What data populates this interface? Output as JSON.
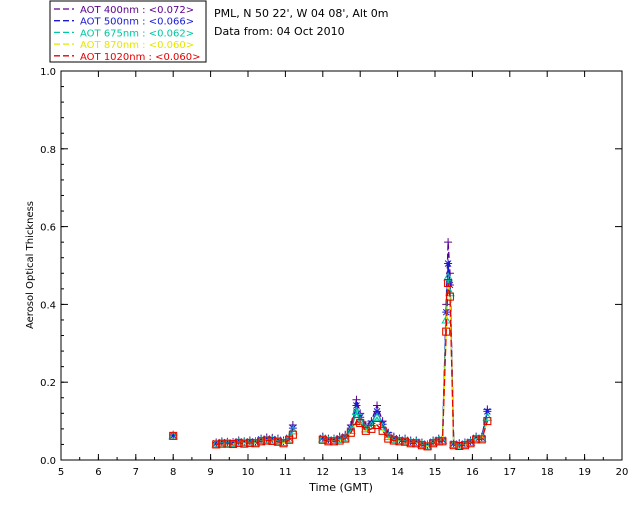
{
  "header": {
    "location": "PML, N 50 22', W 04 08', Alt 0m",
    "date": "Data from: 04 Oct 2010"
  },
  "legend": {
    "items": [
      {
        "label": "AOT  400nm : <0.072>",
        "color": "#5a0090",
        "marker": "plus"
      },
      {
        "label": "AOT  500nm : <0.066>",
        "color": "#1a1ad2",
        "marker": "asterisk"
      },
      {
        "label": "AOT  675nm : <0.062>",
        "color": "#00c8a0",
        "marker": "triangle"
      },
      {
        "label": "AOT  870nm : <0.060>",
        "color": "#e6e600",
        "marker": "square"
      },
      {
        "label": "AOT 1020nm : <0.060>",
        "color": "#e60000",
        "marker": "square"
      }
    ]
  },
  "chart_data": {
    "type": "line",
    "title": "",
    "xlabel": "Time (GMT)",
    "ylabel": "Aerosol Optical Thickness",
    "xlim": [
      5,
      20
    ],
    "ylim": [
      0,
      1.0
    ],
    "xticks": [
      "5",
      "6",
      "7",
      "8",
      "9",
      "10",
      "11",
      "12",
      "13",
      "14",
      "15",
      "16",
      "17",
      "18",
      "19",
      "20"
    ],
    "yticks": [
      "0.0",
      "0.2",
      "0.4",
      "0.6",
      "0.8",
      "1.0"
    ],
    "x": [
      8.0,
      9.15,
      9.3,
      9.45,
      9.6,
      9.75,
      9.9,
      10.05,
      10.2,
      10.35,
      10.5,
      10.65,
      10.8,
      10.95,
      11.1,
      11.2,
      12.0,
      12.15,
      12.3,
      12.45,
      12.6,
      12.75,
      12.9,
      13.0,
      13.15,
      13.3,
      13.45,
      13.6,
      13.75,
      13.9,
      14.05,
      14.2,
      14.35,
      14.5,
      14.65,
      14.8,
      14.95,
      15.1,
      15.2,
      15.3,
      15.35,
      15.4,
      15.5,
      15.65,
      15.8,
      15.95,
      16.1,
      16.25,
      16.4
    ],
    "series": [
      {
        "name": "AOT  400nm : <0.072>",
        "values": [
          0.065,
          0.045,
          0.048,
          0.047,
          0.046,
          0.05,
          0.048,
          0.05,
          0.048,
          0.055,
          0.058,
          0.057,
          0.055,
          0.05,
          0.06,
          0.09,
          0.06,
          0.055,
          0.055,
          0.06,
          0.065,
          0.09,
          0.155,
          0.12,
          0.09,
          0.1,
          0.14,
          0.1,
          0.07,
          0.06,
          0.055,
          0.055,
          0.05,
          0.05,
          0.045,
          0.04,
          0.05,
          0.055,
          0.055,
          0.4,
          0.56,
          0.48,
          0.045,
          0.043,
          0.045,
          0.05,
          0.06,
          0.06,
          0.13
        ]
      },
      {
        "name": "AOT  500nm : <0.066>",
        "values": [
          0.063,
          0.043,
          0.046,
          0.045,
          0.044,
          0.048,
          0.046,
          0.048,
          0.046,
          0.053,
          0.055,
          0.054,
          0.052,
          0.048,
          0.057,
          0.082,
          0.057,
          0.052,
          0.052,
          0.056,
          0.06,
          0.082,
          0.14,
          0.11,
          0.085,
          0.094,
          0.125,
          0.092,
          0.065,
          0.056,
          0.052,
          0.052,
          0.047,
          0.047,
          0.042,
          0.038,
          0.047,
          0.052,
          0.052,
          0.38,
          0.505,
          0.45,
          0.042,
          0.04,
          0.042,
          0.047,
          0.057,
          0.057,
          0.125
        ]
      },
      {
        "name": "AOT  675nm : <0.062>",
        "values": [
          0.062,
          0.041,
          0.044,
          0.043,
          0.042,
          0.046,
          0.044,
          0.046,
          0.044,
          0.05,
          0.052,
          0.051,
          0.049,
          0.045,
          0.054,
          0.075,
          0.054,
          0.05,
          0.05,
          0.053,
          0.057,
          0.076,
          0.125,
          0.1,
          0.08,
          0.088,
          0.11,
          0.085,
          0.06,
          0.052,
          0.05,
          0.049,
          0.045,
          0.045,
          0.04,
          0.036,
          0.045,
          0.05,
          0.05,
          0.36,
          0.47,
          0.43,
          0.04,
          0.038,
          0.04,
          0.045,
          0.055,
          0.055,
          0.11
        ]
      },
      {
        "name": "AOT  870nm : <0.060>",
        "values": [
          0.062,
          0.04,
          0.042,
          0.042,
          0.041,
          0.044,
          0.042,
          0.044,
          0.043,
          0.048,
          0.05,
          0.049,
          0.047,
          0.043,
          0.052,
          0.065,
          0.052,
          0.048,
          0.048,
          0.05,
          0.055,
          0.07,
          0.1,
          0.095,
          0.075,
          0.08,
          0.09,
          0.075,
          0.055,
          0.05,
          0.048,
          0.047,
          0.043,
          0.043,
          0.038,
          0.035,
          0.043,
          0.048,
          0.048,
          0.33,
          0.455,
          0.42,
          0.038,
          0.036,
          0.038,
          0.043,
          0.053,
          0.053,
          0.1
        ]
      },
      {
        "name": "AOT 1020nm : <0.060>",
        "values": [
          0.062,
          0.04,
          0.042,
          0.042,
          0.041,
          0.044,
          0.042,
          0.044,
          0.043,
          0.048,
          0.05,
          0.049,
          0.047,
          0.043,
          0.052,
          0.065,
          0.052,
          0.048,
          0.048,
          0.05,
          0.055,
          0.07,
          0.1,
          0.095,
          0.075,
          0.08,
          0.09,
          0.075,
          0.055,
          0.05,
          0.048,
          0.047,
          0.043,
          0.043,
          0.038,
          0.035,
          0.043,
          0.048,
          0.048,
          0.33,
          0.455,
          0.42,
          0.038,
          0.036,
          0.038,
          0.043,
          0.053,
          0.053,
          0.1
        ]
      }
    ],
    "gaps_after_x": [
      8.0,
      11.2
    ],
    "grid": false,
    "legend_position": "top-left"
  }
}
